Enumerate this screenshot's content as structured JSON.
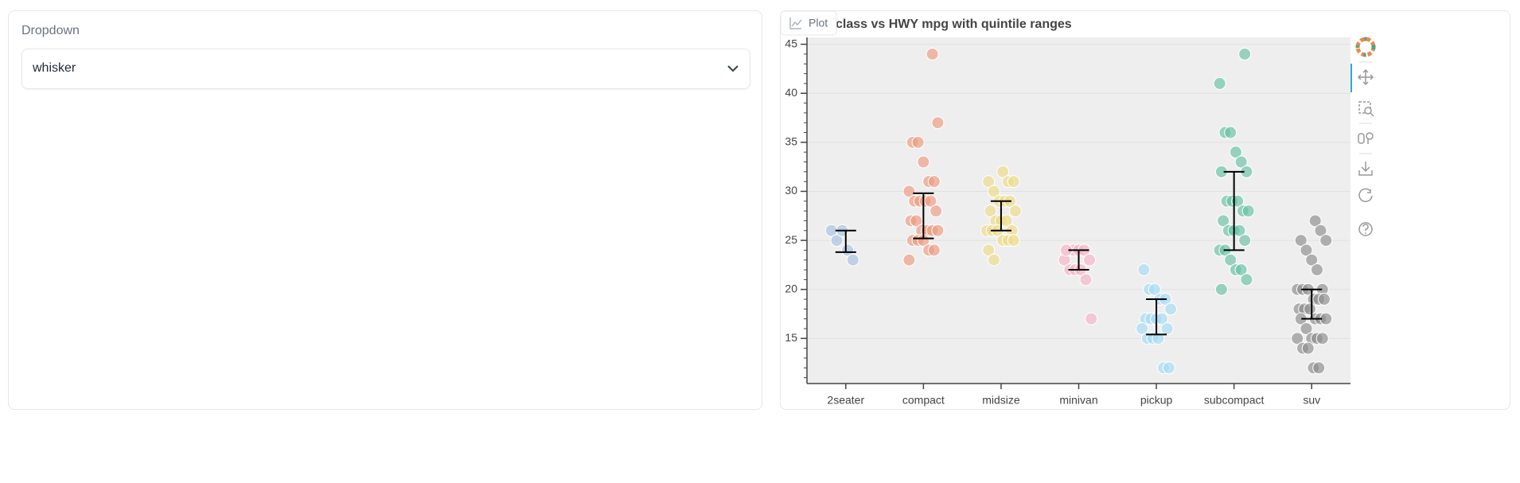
{
  "dropdown": {
    "label": "Dropdown",
    "value": "whisker"
  },
  "plot_tab": "Plot",
  "chart_data": {
    "type": "strip",
    "title": "class vs HWY mpg with quintile ranges",
    "categories": [
      "2seater",
      "compact",
      "midsize",
      "minivan",
      "pickup",
      "subcompact",
      "suv"
    ],
    "colors": [
      "#a6c1e0",
      "#ee9a7e",
      "#ecdb86",
      "#f6b2c4",
      "#a5dcf5",
      "#66c2a5",
      "#8c8c8c"
    ],
    "values": [
      [
        26,
        25,
        26,
        24,
        23
      ],
      [
        44,
        37,
        35,
        35,
        33,
        31,
        31,
        30,
        29,
        29,
        29,
        29,
        28,
        27,
        27,
        26,
        26,
        26,
        26,
        25,
        25,
        25,
        24,
        24,
        23
      ],
      [
        32,
        31,
        31,
        31,
        30,
        29,
        29,
        29,
        28,
        28,
        27,
        27,
        27,
        26,
        26,
        26,
        26,
        25,
        25,
        25,
        24,
        23
      ],
      [
        24,
        24,
        24,
        23,
        23,
        22,
        22,
        22,
        21,
        17,
        24
      ],
      [
        22,
        20,
        20,
        19,
        19,
        18,
        17,
        17,
        17,
        17,
        16,
        16,
        15,
        15,
        15,
        12,
        12
      ],
      [
        44,
        41,
        36,
        36,
        34,
        33,
        32,
        32,
        29,
        29,
        29,
        28,
        28,
        27,
        26,
        26,
        26,
        25,
        24,
        24,
        23,
        22,
        22,
        21,
        20
      ],
      [
        27,
        26,
        25,
        25,
        24,
        23,
        22,
        20,
        20,
        20,
        20,
        19,
        19,
        19,
        18,
        18,
        18,
        17,
        17,
        17,
        17,
        16,
        15,
        15,
        15,
        15,
        14,
        14,
        12,
        12
      ]
    ],
    "whisker_lower": [
      23.8,
      25.2,
      26,
      22,
      15.4,
      24,
      17
    ],
    "whisker_upper": [
      26,
      29.8,
      29,
      24,
      19,
      32,
      20
    ],
    "ylim": [
      10.4,
      45.7
    ],
    "yticks": [
      15,
      20,
      25,
      30,
      35,
      40,
      45
    ],
    "grid": true
  }
}
